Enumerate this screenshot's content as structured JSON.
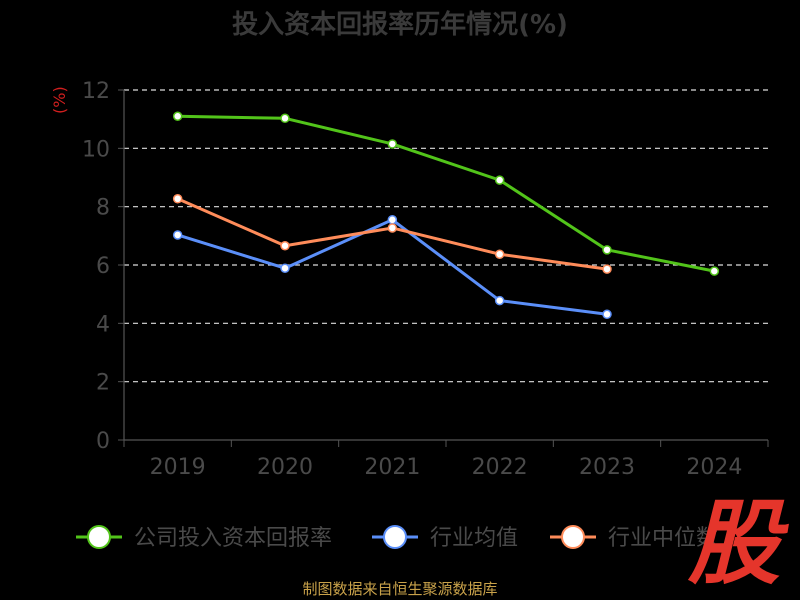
{
  "title": "投入资本回报率历年情况(%)",
  "source": "制图数据来自恒生聚源数据库",
  "watermark": "股",
  "colors": {
    "background": "#000000",
    "grid": "#dddddd",
    "axis": "#555555",
    "tick_text": "#4a4a4a",
    "legend_text": "#4a4a4a"
  },
  "chart_data": {
    "type": "line",
    "title": "投入资本回报率历年情况(%)",
    "xlabel": "",
    "ylabel": "(%)",
    "categories": [
      "2019",
      "2020",
      "2021",
      "2022",
      "2023",
      "2024"
    ],
    "ylim": [
      0,
      12
    ],
    "yticks": [
      0,
      2,
      4,
      6,
      8,
      10,
      12
    ],
    "grid": true,
    "legend_position": "bottom",
    "series": [
      {
        "name": "公司投入资本回报率",
        "color": "#52c41a",
        "values": [
          11.1,
          11.03,
          10.15,
          8.91,
          6.52,
          5.79
        ]
      },
      {
        "name": "行业均值",
        "color": "#5b8ff9",
        "values": [
          7.03,
          5.89,
          7.55,
          4.78,
          4.31,
          null
        ]
      },
      {
        "name": "行业中位数",
        "color": "#ff8c5a",
        "values": [
          8.27,
          6.66,
          7.27,
          6.37,
          5.86,
          null
        ]
      }
    ]
  }
}
